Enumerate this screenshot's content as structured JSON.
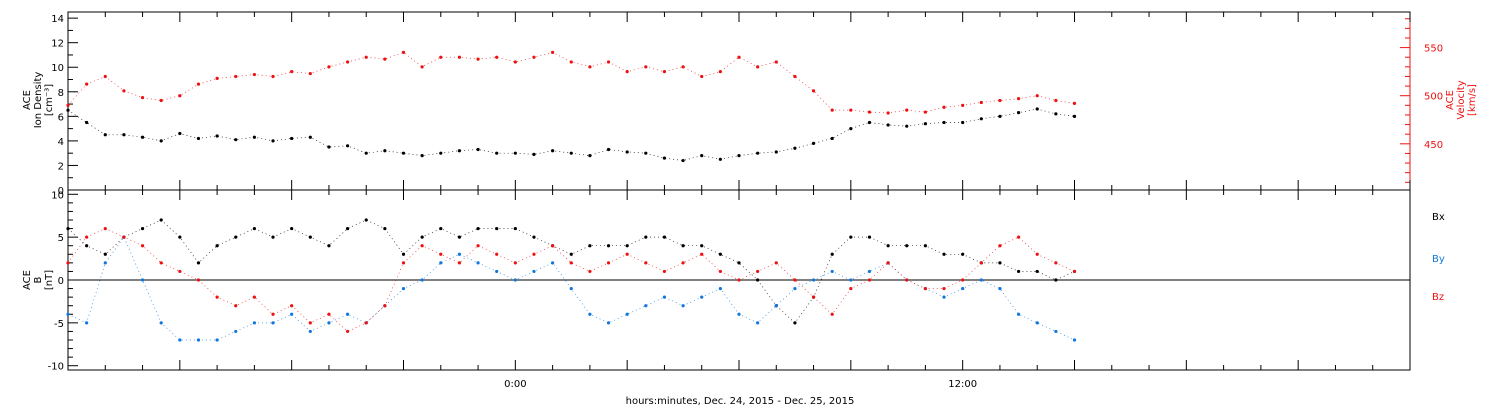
{
  "colors": {
    "black": "#000000",
    "red": "#ee1111",
    "blue": "#1177dd",
    "axis_right": "#ee1111"
  },
  "xaxis": {
    "label": "hours:minutes, Dec. 24, 2015 - Dec. 25, 2015",
    "range_hours": [
      -12,
      24
    ],
    "ticks": [
      {
        "hour": 0,
        "label": "0:00"
      },
      {
        "hour": 12,
        "label": "12:00"
      }
    ]
  },
  "chart_data": [
    {
      "type": "scatter",
      "name": "plasma",
      "left_axis": {
        "label_lines": [
          "ACE",
          "Ion Density",
          "[cm⁻³]"
        ],
        "ylim": [
          0,
          14.5
        ],
        "ticks": [
          0,
          2,
          4,
          6,
          8,
          10,
          12,
          14
        ]
      },
      "right_axis": {
        "label_lines": [
          "ACE",
          "Velocity",
          "[km/s]"
        ],
        "ylim": [
          402,
          587
        ],
        "ticks": [
          450,
          500,
          550
        ]
      },
      "series": [
        {
          "label": "density",
          "axis": "left",
          "color": "black",
          "x": [
            -12,
            -11.5,
            -11,
            -10.5,
            -10,
            -9.5,
            -9,
            -8.5,
            -8,
            -7.5,
            -7,
            -6.5,
            -6,
            -5.5,
            -5,
            -4.5,
            -4,
            -3.5,
            -3,
            -2.5,
            -2,
            -1.5,
            -1,
            -0.5,
            0,
            0.5,
            1,
            1.5,
            2,
            2.5,
            3,
            3.5,
            4,
            4.5,
            5,
            5.5,
            6,
            6.5,
            7,
            7.5,
            8,
            8.5,
            9,
            9.5,
            10,
            10.5,
            11,
            11.5,
            12,
            12.5,
            13,
            13.5,
            14,
            14.5,
            15
          ],
          "y": [
            6.5,
            5.5,
            4.5,
            4.5,
            4.3,
            4.0,
            4.6,
            4.2,
            4.4,
            4.1,
            4.3,
            4.0,
            4.2,
            4.3,
            3.5,
            3.6,
            3.0,
            3.2,
            3.0,
            2.8,
            3.0,
            3.2,
            3.3,
            3.0,
            3.0,
            2.9,
            3.2,
            3.0,
            2.8,
            3.3,
            3.1,
            3.0,
            2.6,
            2.4,
            2.8,
            2.5,
            2.8,
            3.0,
            3.1,
            3.4,
            3.8,
            4.2,
            5.0,
            5.5,
            5.3,
            5.2,
            5.4,
            5.5,
            5.5,
            5.8,
            6.0,
            6.3,
            6.6,
            6.2,
            6.0
          ]
        },
        {
          "label": "velocity",
          "axis": "right",
          "color": "red",
          "x": [
            -12,
            -11.5,
            -11,
            -10.5,
            -10,
            -9.5,
            -9,
            -8.5,
            -8,
            -7.5,
            -7,
            -6.5,
            -6,
            -5.5,
            -5,
            -4.5,
            -4,
            -3.5,
            -3,
            -2.5,
            -2,
            -1.5,
            -1,
            -0.5,
            0,
            0.5,
            1,
            1.5,
            2,
            2.5,
            3,
            3.5,
            4,
            4.5,
            5,
            5.5,
            6,
            6.5,
            7,
            7.5,
            8,
            8.5,
            9,
            9.5,
            10,
            10.5,
            11,
            11.5,
            12,
            12.5,
            13,
            13.5,
            14,
            14.5,
            15
          ],
          "y": [
            490,
            512,
            520,
            505,
            498,
            495,
            500,
            512,
            518,
            520,
            522,
            520,
            525,
            523,
            530,
            535,
            540,
            538,
            545,
            530,
            540,
            540,
            538,
            540,
            535,
            540,
            545,
            535,
            530,
            535,
            525,
            530,
            525,
            530,
            520,
            525,
            540,
            530,
            535,
            520,
            505,
            485,
            485,
            483,
            482,
            485,
            483,
            488,
            490,
            493,
            495,
            497,
            500,
            495,
            492
          ]
        }
      ]
    },
    {
      "type": "scatter",
      "name": "magnetic-field",
      "left_axis": {
        "label_lines": [
          "ACE",
          "B",
          "[nT]"
        ],
        "ylim": [
          -10.5,
          10.5
        ],
        "ticks": [
          -10,
          -5,
          0,
          5,
          10
        ]
      },
      "zero_line": true,
      "legend": {
        "placement": "right",
        "entries": [
          {
            "label": "Bx",
            "color": "black"
          },
          {
            "label": "By",
            "color": "blue"
          },
          {
            "label": "Bz",
            "color": "red"
          }
        ]
      },
      "series": [
        {
          "label": "Bx",
          "color": "black",
          "x": [
            -12,
            -11.5,
            -11,
            -10.5,
            -10,
            -9.5,
            -9,
            -8.5,
            -8,
            -7.5,
            -7,
            -6.5,
            -6,
            -5.5,
            -5,
            -4.5,
            -4,
            -3.5,
            -3,
            -2.5,
            -2,
            -1.5,
            -1,
            -0.5,
            0,
            0.5,
            1,
            1.5,
            2,
            2.5,
            3,
            3.5,
            4,
            4.5,
            5,
            5.5,
            6,
            6.5,
            7,
            7.5,
            8,
            8.5,
            9,
            9.5,
            10,
            10.5,
            11,
            11.5,
            12,
            12.5,
            13,
            13.5,
            14,
            14.5,
            15
          ],
          "y": [
            6,
            4,
            3,
            5,
            6,
            7,
            5,
            2,
            4,
            5,
            6,
            5,
            6,
            5,
            4,
            6,
            7,
            6,
            3,
            5,
            6,
            5,
            6,
            6,
            6,
            5,
            4,
            3,
            4,
            4,
            4,
            5,
            5,
            4,
            4,
            3,
            2,
            0,
            -3,
            -5,
            -2,
            3,
            5,
            5,
            4,
            4,
            4,
            3,
            3,
            2,
            2,
            1,
            1,
            0,
            1
          ]
        },
        {
          "label": "By",
          "color": "blue",
          "x": [
            -12,
            -11.5,
            -11,
            -10.5,
            -10,
            -9.5,
            -9,
            -8.5,
            -8,
            -7.5,
            -7,
            -6.5,
            -6,
            -5.5,
            -5,
            -4.5,
            -4,
            -3.5,
            -3,
            -2.5,
            -2,
            -1.5,
            -1,
            -0.5,
            0,
            0.5,
            1,
            1.5,
            2,
            2.5,
            3,
            3.5,
            4,
            4.5,
            5,
            5.5,
            6,
            6.5,
            7,
            7.5,
            8,
            8.5,
            9,
            9.5,
            10,
            10.5,
            11,
            11.5,
            12,
            12.5,
            13,
            13.5,
            14,
            14.5,
            15
          ],
          "y": [
            -4,
            -5,
            2,
            5,
            0,
            -5,
            -7,
            -7,
            -7,
            -6,
            -5,
            -5,
            -4,
            -6,
            -5,
            -4,
            -5,
            -3,
            -1,
            0,
            2,
            3,
            2,
            1,
            0,
            1,
            2,
            -1,
            -4,
            -5,
            -4,
            -3,
            -2,
            -3,
            -2,
            -1,
            -4,
            -5,
            -3,
            -1,
            0,
            1,
            0,
            1,
            2,
            0,
            -1,
            -2,
            -1,
            0,
            -1,
            -4,
            -5,
            -6,
            -7
          ]
        },
        {
          "label": "Bz",
          "color": "red",
          "x": [
            -12,
            -11.5,
            -11,
            -10.5,
            -10,
            -9.5,
            -9,
            -8.5,
            -8,
            -7.5,
            -7,
            -6.5,
            -6,
            -5.5,
            -5,
            -4.5,
            -4,
            -3.5,
            -3,
            -2.5,
            -2,
            -1.5,
            -1,
            -0.5,
            0,
            0.5,
            1,
            1.5,
            2,
            2.5,
            3,
            3.5,
            4,
            4.5,
            5,
            5.5,
            6,
            6.5,
            7,
            7.5,
            8,
            8.5,
            9,
            9.5,
            10,
            10.5,
            11,
            11.5,
            12,
            12.5,
            13,
            13.5,
            14,
            14.5,
            15
          ],
          "y": [
            2,
            5,
            6,
            5,
            4,
            2,
            1,
            0,
            -2,
            -3,
            -2,
            -4,
            -3,
            -5,
            -4,
            -6,
            -5,
            -3,
            2,
            4,
            3,
            2,
            4,
            3,
            2,
            3,
            4,
            2,
            1,
            2,
            3,
            2,
            1,
            2,
            3,
            1,
            0,
            1,
            2,
            0,
            -2,
            -4,
            -1,
            0,
            2,
            0,
            -1,
            -1,
            0,
            2,
            4,
            5,
            3,
            2,
            1
          ]
        }
      ]
    }
  ]
}
